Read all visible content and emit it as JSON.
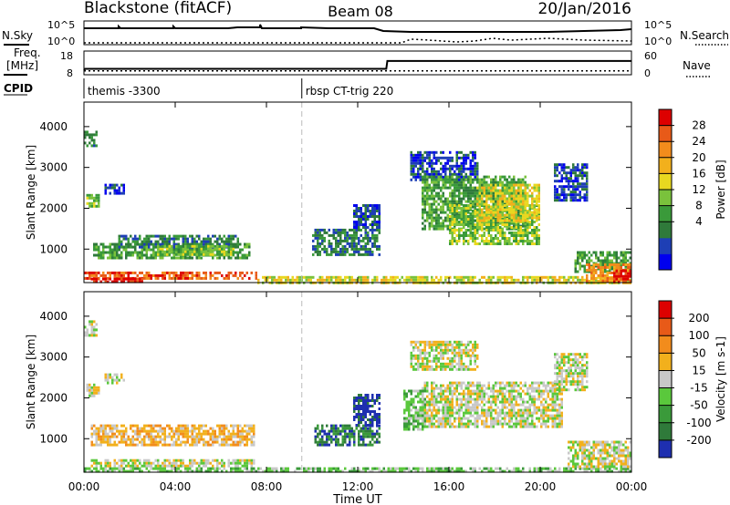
{
  "header": {
    "station": "Blackstone (fitACF)",
    "beam": "Beam 08",
    "date": "20/Jan/2016"
  },
  "summary": {
    "nsky_label": "N.Sky",
    "nsearch_label": "N.Search",
    "nsky_ticks": [
      "10^5",
      "10^0"
    ],
    "nsearch_ticks": [
      "10^5",
      "10^0"
    ],
    "freq_label_line1": "Freq.",
    "freq_label_line2": "[MHz]",
    "freq_ticks": [
      "18",
      "8"
    ],
    "nave_label": "Nave",
    "nave_ticks": [
      "60",
      "0"
    ],
    "cpid_label": "CPID",
    "cpid_segments": [
      {
        "label": "themis -3300",
        "start_hour": 0.0
      },
      {
        "label": "rbsp CT-trig 220",
        "start_hour": 9.55
      }
    ],
    "freq_mhz": [
      {
        "hour": 0.0,
        "value": 9.9
      },
      {
        "hour": 0.05,
        "value": 10.5
      },
      {
        "hour": 13.25,
        "value": 10.5
      },
      {
        "hour": 13.3,
        "value": 13.8
      },
      {
        "hour": 24.0,
        "value": 13.8
      }
    ],
    "nave": [
      {
        "hour": 0.0,
        "value": 10
      },
      {
        "hour": 24.0,
        "value": 10
      }
    ]
  },
  "chart_data": [
    {
      "type": "heatmap",
      "panel": "power",
      "ylabel": "Slant Range [km]",
      "xlabel": "Time UT",
      "xlim_hours": [
        0,
        24
      ],
      "ylim": [
        180,
        4600
      ],
      "yticks": [
        "1000",
        "2000",
        "3000",
        "4000"
      ],
      "xticks": [
        "00:00",
        "04:00",
        "08:00",
        "12:00",
        "16:00",
        "20:00",
        "00:00"
      ],
      "colorbar": {
        "label": "Power [dB]",
        "ticks": [
          "28",
          "24",
          "20",
          "16",
          "12",
          "8",
          "4"
        ],
        "colors": [
          "#0000ee",
          "#1e3fb5",
          "#2f7a3a",
          "#3a9a3a",
          "#7ac23c",
          "#e8d820",
          "#f2b01c",
          "#f28c1c",
          "#e85a18",
          "#dd0000"
        ]
      },
      "regions": [
        {
          "t0": 0.0,
          "t1": 0.6,
          "r0": 3550,
          "r1": 3900,
          "level": 2
        },
        {
          "t0": 0.1,
          "t1": 0.7,
          "r0": 2050,
          "r1": 2350,
          "level": 4
        },
        {
          "t0": 0.9,
          "t1": 1.8,
          "r0": 2350,
          "r1": 2600,
          "level": 1
        },
        {
          "t0": 0.0,
          "t1": 7.6,
          "r0": 300,
          "r1": 450,
          "level": 8
        },
        {
          "t0": 0.3,
          "t1": 2.6,
          "r0": 180,
          "r1": 300,
          "level": 9
        },
        {
          "t0": 0.4,
          "t1": 7.3,
          "r0": 750,
          "r1": 1150,
          "level": 3
        },
        {
          "t0": 1.5,
          "t1": 6.8,
          "r0": 1050,
          "r1": 1350,
          "level": 2
        },
        {
          "t0": 3.2,
          "t1": 6.6,
          "r0": 850,
          "r1": 1100,
          "level": 4
        },
        {
          "t0": 7.6,
          "t1": 24.0,
          "r0": 180,
          "r1": 340,
          "level": 5
        },
        {
          "t0": 10.0,
          "t1": 13.0,
          "r0": 850,
          "r1": 1500,
          "level": 2
        },
        {
          "t0": 11.8,
          "t1": 13.0,
          "r0": 1500,
          "r1": 2100,
          "level": 1
        },
        {
          "t0": 14.3,
          "t1": 17.3,
          "r0": 2700,
          "r1": 3400,
          "level": 1
        },
        {
          "t0": 14.8,
          "t1": 19.4,
          "r0": 1500,
          "r1": 2800,
          "level": 3
        },
        {
          "t0": 16.0,
          "t1": 20.0,
          "r0": 1100,
          "r1": 2100,
          "level": 4
        },
        {
          "t0": 17.2,
          "t1": 20.0,
          "r0": 1700,
          "r1": 2600,
          "level": 5
        },
        {
          "t0": 20.6,
          "t1": 22.1,
          "r0": 2200,
          "r1": 3100,
          "level": 1
        },
        {
          "t0": 21.5,
          "t1": 24.0,
          "r0": 450,
          "r1": 950,
          "level": 3
        },
        {
          "t0": 22.0,
          "t1": 24.0,
          "r0": 220,
          "r1": 650,
          "level": 7
        },
        {
          "t0": 23.2,
          "t1": 24.0,
          "r0": 200,
          "r1": 500,
          "level": 9
        }
      ]
    },
    {
      "type": "heatmap",
      "panel": "velocity",
      "ylabel": "Slant Range [km]",
      "xlabel": "Time UT",
      "xlim_hours": [
        0,
        24
      ],
      "ylim": [
        180,
        4600
      ],
      "yticks": [
        "1000",
        "2000",
        "3000",
        "4000"
      ],
      "xticks": [
        "00:00",
        "04:00",
        "08:00",
        "12:00",
        "16:00",
        "20:00",
        "00:00"
      ],
      "colorbar": {
        "label": "Velocity [m s-1]",
        "ticks": [
          "200",
          "100",
          "50",
          "15",
          "-15",
          "-50",
          "-100",
          "-200"
        ],
        "colors": [
          "#1e2fb0",
          "#2f7a3a",
          "#3a9a3a",
          "#5ac83c",
          "#c8c8c8",
          "#f2b01c",
          "#f28c1c",
          "#e85a18",
          "#dd0000"
        ]
      },
      "regions": [
        {
          "t0": 0.0,
          "t1": 0.6,
          "r0": 3550,
          "r1": 3900,
          "level": 4
        },
        {
          "t0": 0.1,
          "t1": 0.7,
          "r0": 2050,
          "r1": 2350,
          "level": 4
        },
        {
          "t0": 0.9,
          "t1": 1.8,
          "r0": 2350,
          "r1": 2600,
          "level": 4
        },
        {
          "t0": 0.3,
          "t1": 7.5,
          "r0": 850,
          "r1": 1350,
          "level": 5
        },
        {
          "t0": 0.3,
          "t1": 7.5,
          "r0": 300,
          "r1": 500,
          "level": 4
        },
        {
          "t0": 0.0,
          "t1": 24.0,
          "r0": 180,
          "r1": 300,
          "level": 3
        },
        {
          "t0": 10.1,
          "t1": 13.0,
          "r0": 850,
          "r1": 1350,
          "level": 1
        },
        {
          "t0": 11.8,
          "t1": 13.0,
          "r0": 1350,
          "r1": 2100,
          "level": 0
        },
        {
          "t0": 14.3,
          "t1": 17.3,
          "r0": 2700,
          "r1": 3400,
          "level": 4
        },
        {
          "t0": 14.8,
          "t1": 21.0,
          "r0": 1300,
          "r1": 2400,
          "level": 4
        },
        {
          "t0": 14.0,
          "t1": 15.0,
          "r0": 1200,
          "r1": 2200,
          "level": 3
        },
        {
          "t0": 20.6,
          "t1": 22.1,
          "r0": 2200,
          "r1": 3100,
          "level": 4
        },
        {
          "t0": 21.2,
          "t1": 24.0,
          "r0": 300,
          "r1": 950,
          "level": 4
        }
      ]
    }
  ]
}
